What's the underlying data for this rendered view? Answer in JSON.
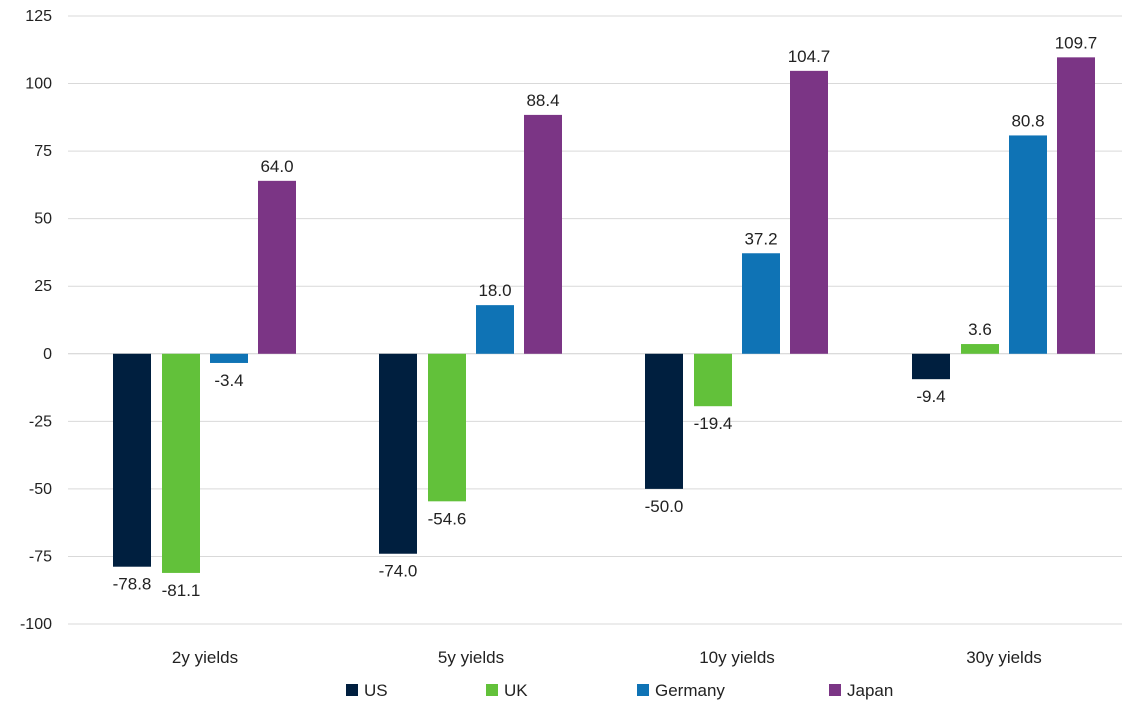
{
  "chart_data": {
    "type": "bar",
    "title": "",
    "xlabel": "",
    "ylabel": "",
    "categories": [
      "2y yields",
      "5y yields",
      "10y yields",
      "30y yields"
    ],
    "series": [
      {
        "name": "US",
        "color": "#001f3f",
        "values": [
          -78.8,
          -74.0,
          -50.0,
          -9.4
        ],
        "labels": [
          "-78.8",
          "-74.0",
          "-50.0",
          "-9.4"
        ]
      },
      {
        "name": "UK",
        "color": "#62c13a",
        "values": [
          -81.1,
          -54.6,
          -19.4,
          3.6
        ],
        "labels": [
          "-81.1",
          "-54.6",
          "-19.4",
          "3.6"
        ]
      },
      {
        "name": "Germany",
        "color": "#0f73b5",
        "values": [
          -3.4,
          18.0,
          37.2,
          80.8
        ],
        "labels": [
          "-3.4",
          "18.0",
          "37.2",
          "80.8"
        ]
      },
      {
        "name": "Japan",
        "color": "#7b3585",
        "values": [
          64.0,
          88.4,
          104.7,
          109.7
        ],
        "labels": [
          "64.0",
          "88.4",
          "104.7",
          "109.7"
        ]
      }
    ],
    "ylim": [
      -100,
      125
    ],
    "yticks": [
      125,
      100,
      75,
      50,
      25,
      0,
      -25,
      -50,
      -75,
      -100
    ],
    "grid": true,
    "legend_position": "bottom"
  }
}
